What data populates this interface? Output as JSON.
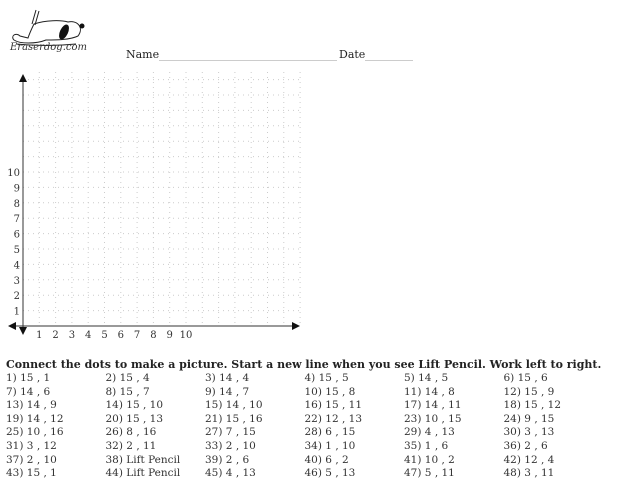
{
  "header": {
    "logo_text": "Eraserdog.com",
    "name_label": "Name",
    "date_label": "Date"
  },
  "grid": {
    "x_ticks": [
      "1",
      "2",
      "3",
      "4",
      "5",
      "6",
      "7",
      "8",
      "9",
      "10"
    ],
    "y_ticks": [
      "1",
      "2",
      "3",
      "4",
      "5",
      "6",
      "7",
      "8",
      "9",
      "10"
    ]
  },
  "instructions": "Connect the dots to make a picture. Start a new line when you see Lift Pencil. Work left to right.",
  "points": [
    [
      "1)  15 , 1",
      "2)  15 , 4",
      "3)  14 , 4",
      "4)  15 , 5",
      "5)  14 , 5",
      "6)  15 , 6"
    ],
    [
      "7)  14 , 6",
      "8)  15 , 7",
      "9)  14 , 7",
      "10)  15 , 8",
      "11)  14 , 8",
      "12)  15 , 9"
    ],
    [
      "13)  14 , 9",
      "14)  15 , 10",
      "15)  14 , 10",
      "16)  15 , 11",
      "17)  14 , 11",
      "18)  15 , 12"
    ],
    [
      "19)  14 , 12",
      "20)  15 , 13",
      "21)  15 , 16",
      "22)  12 , 13",
      "23)  10 , 15",
      "24)  9 , 15"
    ],
    [
      "25)  10 , 16",
      "26)  8 , 16",
      "27)  7 , 15",
      "28)  6 , 15",
      "29)  4 , 13",
      "30)  3 , 13"
    ],
    [
      "31)  3 , 12",
      "32)  2 , 11",
      "33)  2 , 10",
      "34)  1 , 10",
      "35)  1 , 6",
      "36)  2 , 6"
    ],
    [
      "37)  2 , 10",
      "38)  Lift Pencil",
      "39)  2 , 6",
      "40)  6 , 2",
      "41)  10 , 2",
      "42)  12 , 4"
    ],
    [
      "43)  15 , 1",
      "44)  Lift Pencil",
      "45)  4 , 13",
      "46)  5 , 13",
      "47)  5 , 11",
      "48)  3 , 11"
    ]
  ]
}
